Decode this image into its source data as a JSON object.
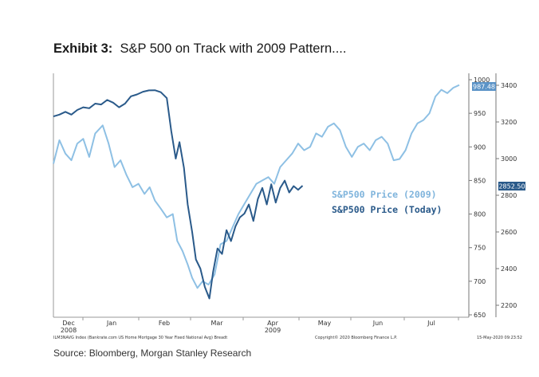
{
  "title": {
    "exhibit": "Exhibit 3:",
    "text": "S&P 500 on Track with 2009 Pattern...."
  },
  "source": "Source: Bloomberg, Morgan Stanley Research",
  "footnotes": {
    "left": "ILM3NAVG Index (Bankrate.com US Home Mortgage 30 Year Fixed National Avg) Breadt",
    "center": "Copyright© 2020 Bloomberg Finance L.P.",
    "right": "15-May-2020 09:23:52"
  },
  "colors": {
    "series_2009": "#8ec0e4",
    "series_today": "#2a5a8a",
    "label_2009": "#7fb4dc",
    "label_today": "#2a5a8a",
    "badge": "#5b93c7"
  },
  "chart_data": {
    "type": "line",
    "x_ticks": [
      "Dec",
      "Jan",
      "Feb",
      "Mar",
      "Apr",
      "May",
      "Jun",
      "Jul"
    ],
    "x_year_labels": [
      {
        "under": "Dec",
        "text": "2008"
      },
      {
        "under": "Apr",
        "text": "2009"
      }
    ],
    "left_axis": {
      "ticks": [
        1000,
        950,
        900,
        850,
        800,
        750,
        700,
        650
      ],
      "range": [
        650,
        1000
      ],
      "last_value": "987.48"
    },
    "right_axis": {
      "ticks": [
        3400,
        3200,
        3000,
        2800,
        2600,
        2400,
        2200
      ],
      "range": [
        2126,
        3440
      ],
      "last_value": "2852.50"
    },
    "legend": [
      {
        "name": "S&P500 Price (2009)"
      },
      {
        "name": "S&P500 Price (Today)"
      }
    ],
    "series": [
      {
        "name": "S&P500 Price (2009)",
        "axis": "left",
        "color": "#8ec0e4",
        "points": [
          [
            0.0,
            875
          ],
          [
            0.8,
            910
          ],
          [
            1.6,
            890
          ],
          [
            2.4,
            880
          ],
          [
            3.2,
            905
          ],
          [
            4.0,
            912
          ],
          [
            4.8,
            885
          ],
          [
            5.6,
            920
          ],
          [
            6.6,
            932
          ],
          [
            7.4,
            905
          ],
          [
            8.2,
            870
          ],
          [
            9.0,
            880
          ],
          [
            9.8,
            858
          ],
          [
            10.6,
            840
          ],
          [
            11.4,
            845
          ],
          [
            12.2,
            830
          ],
          [
            12.9,
            840
          ],
          [
            13.6,
            820
          ],
          [
            14.4,
            808
          ],
          [
            15.2,
            795
          ],
          [
            16.0,
            800
          ],
          [
            16.6,
            760
          ],
          [
            17.3,
            745
          ],
          [
            18.0,
            725
          ],
          [
            18.6,
            705
          ],
          [
            19.3,
            690
          ],
          [
            20.0,
            700
          ],
          [
            20.8,
            695
          ],
          [
            21.6,
            710
          ],
          [
            22.4,
            755
          ],
          [
            23.2,
            760
          ],
          [
            24.0,
            780
          ],
          [
            24.8,
            800
          ],
          [
            25.6,
            815
          ],
          [
            26.4,
            830
          ],
          [
            27.2,
            845
          ],
          [
            28.0,
            850
          ],
          [
            28.8,
            855
          ],
          [
            29.6,
            845
          ],
          [
            30.4,
            870
          ],
          [
            31.2,
            880
          ],
          [
            32.0,
            890
          ],
          [
            32.8,
            905
          ],
          [
            33.6,
            895
          ],
          [
            34.4,
            900
          ],
          [
            35.2,
            920
          ],
          [
            36.0,
            915
          ],
          [
            36.8,
            930
          ],
          [
            37.6,
            935
          ],
          [
            38.4,
            925
          ],
          [
            39.2,
            900
          ],
          [
            40.0,
            885
          ],
          [
            40.8,
            900
          ],
          [
            41.6,
            905
          ],
          [
            42.4,
            895
          ],
          [
            43.2,
            910
          ],
          [
            44.0,
            915
          ],
          [
            44.8,
            905
          ],
          [
            45.6,
            880
          ],
          [
            46.4,
            882
          ],
          [
            47.2,
            895
          ],
          [
            48.0,
            920
          ],
          [
            48.8,
            935
          ],
          [
            49.6,
            940
          ],
          [
            50.4,
            950
          ],
          [
            51.2,
            975
          ],
          [
            52.0,
            985
          ],
          [
            52.8,
            980
          ],
          [
            53.6,
            988
          ],
          [
            54.4,
            992
          ]
        ]
      },
      {
        "name": "S&P500 Price (Today)",
        "axis": "right",
        "color": "#2a5a8a",
        "points": [
          [
            0.0,
            3230
          ],
          [
            0.8,
            3240
          ],
          [
            1.6,
            3255
          ],
          [
            2.4,
            3240
          ],
          [
            3.2,
            3265
          ],
          [
            4.0,
            3280
          ],
          [
            4.8,
            3275
          ],
          [
            5.6,
            3300
          ],
          [
            6.4,
            3295
          ],
          [
            7.2,
            3320
          ],
          [
            8.0,
            3305
          ],
          [
            8.8,
            3280
          ],
          [
            9.6,
            3300
          ],
          [
            10.4,
            3340
          ],
          [
            11.2,
            3350
          ],
          [
            12.0,
            3365
          ],
          [
            12.8,
            3372
          ],
          [
            13.6,
            3373
          ],
          [
            14.4,
            3362
          ],
          [
            15.2,
            3330
          ],
          [
            15.8,
            3150
          ],
          [
            16.4,
            3000
          ],
          [
            16.9,
            3090
          ],
          [
            17.5,
            2950
          ],
          [
            18.0,
            2750
          ],
          [
            18.6,
            2600
          ],
          [
            19.1,
            2450
          ],
          [
            19.7,
            2400
          ],
          [
            20.3,
            2300
          ],
          [
            20.9,
            2237
          ],
          [
            21.4,
            2380
          ],
          [
            22.0,
            2510
          ],
          [
            22.6,
            2480
          ],
          [
            23.2,
            2610
          ],
          [
            23.8,
            2550
          ],
          [
            24.4,
            2630
          ],
          [
            25.0,
            2680
          ],
          [
            25.6,
            2700
          ],
          [
            26.2,
            2750
          ],
          [
            26.8,
            2660
          ],
          [
            27.4,
            2780
          ],
          [
            28.0,
            2840
          ],
          [
            28.6,
            2750
          ],
          [
            29.2,
            2860
          ],
          [
            29.8,
            2760
          ],
          [
            30.4,
            2840
          ],
          [
            31.0,
            2880
          ],
          [
            31.6,
            2815
          ],
          [
            32.2,
            2850
          ],
          [
            32.8,
            2830
          ],
          [
            33.4,
            2852
          ]
        ]
      }
    ]
  }
}
